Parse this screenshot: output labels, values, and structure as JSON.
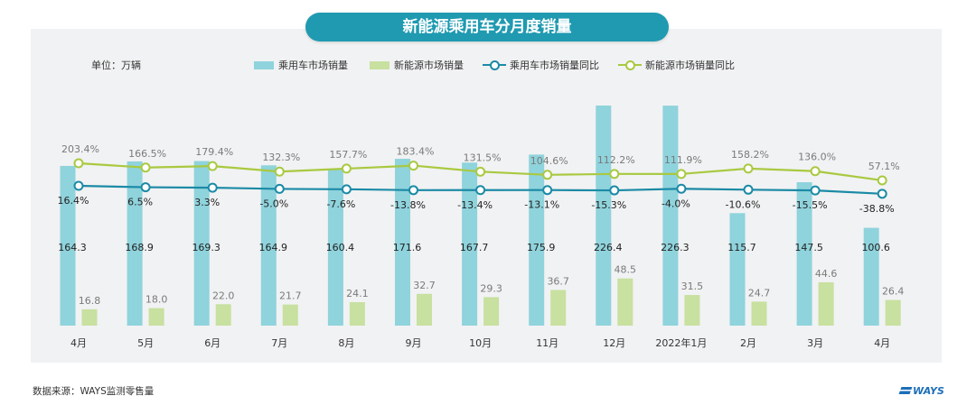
{
  "title": "新能源乘用车分月度销量",
  "unit_label": "单位：万辆",
  "legend": [
    {
      "label": "乘用车市场销量",
      "kind": "bar",
      "color": "#8fd3dc"
    },
    {
      "label": "新能源市场销量",
      "kind": "bar",
      "color": "#c8e0a0"
    },
    {
      "label": "乘用车市场销量同比",
      "kind": "line",
      "color": "#1b8aa6"
    },
    {
      "label": "新能源市场销量同比",
      "kind": "line",
      "color": "#a9c940"
    }
  ],
  "source": "数据来源：WAYS监测零售量",
  "logo_text": "WAYS",
  "colors": {
    "panel_bg": "#f1f2f3",
    "title_bg": "#1f9ab1",
    "bar_total": "#8fd3dc",
    "bar_nev": "#c8e0a0",
    "line_total": "#1b8aa6",
    "line_nev": "#a9c940",
    "label_dark": "#222222",
    "label_gray": "#7a7a7a"
  },
  "chart_data": {
    "type": "bar",
    "categories": [
      "4月",
      "5月",
      "6月",
      "7月",
      "8月",
      "9月",
      "10月",
      "11月",
      "12月",
      "2022年1月",
      "2月",
      "3月",
      "4月"
    ],
    "series": [
      {
        "name": "乘用车市场销量",
        "type": "bar",
        "values": [
          164.3,
          168.9,
          169.3,
          164.9,
          160.4,
          171.6,
          167.7,
          175.9,
          226.4,
          226.3,
          115.7,
          147.5,
          100.6
        ],
        "labels": [
          "164.3",
          "168.9",
          "169.3",
          "164.9",
          "160.4",
          "171.6",
          "167.7",
          "175.9",
          "226.4",
          "226.3",
          "115.7",
          "147.5",
          "100.6"
        ]
      },
      {
        "name": "新能源市场销量",
        "type": "bar",
        "values": [
          16.8,
          18.0,
          22.0,
          21.7,
          24.1,
          32.7,
          29.3,
          36.7,
          48.5,
          31.5,
          24.7,
          44.6,
          26.4
        ],
        "labels": [
          "16.8",
          "18.0",
          "22.0",
          "21.7",
          "24.1",
          "32.7",
          "29.3",
          "36.7",
          "48.5",
          "31.5",
          "24.7",
          "44.6",
          "26.4"
        ]
      },
      {
        "name": "乘用车市场销量同比",
        "type": "line",
        "axis": "secondary",
        "values": [
          16.4,
          6.5,
          3.3,
          -5.0,
          -7.6,
          -13.8,
          -13.4,
          -13.1,
          -15.3,
          -4.0,
          -10.6,
          -15.5,
          -38.8
        ],
        "labels": [
          "16.4%",
          "6.5%",
          "3.3%",
          "-5.0%",
          "-7.6%",
          "-13.8%",
          "-13.4%",
          "-13.1%",
          "-15.3%",
          "-4.0%",
          "-10.6%",
          "-15.5%",
          "-38.8%"
        ]
      },
      {
        "name": "新能源市场销量同比",
        "type": "line",
        "axis": "secondary",
        "values": [
          203.4,
          166.5,
          179.4,
          132.3,
          157.7,
          183.4,
          131.5,
          104.6,
          112.2,
          111.9,
          158.2,
          136.0,
          57.1
        ],
        "labels": [
          "203.4%",
          "166.5%",
          "179.4%",
          "132.3%",
          "157.7%",
          "183.4%",
          "131.5%",
          "104.6%",
          "112.2%",
          "111.9%",
          "158.2%",
          "136.0%",
          "57.1%"
        ]
      }
    ],
    "ylabel": "单位：万辆",
    "grid": false,
    "legend_position": "top"
  }
}
